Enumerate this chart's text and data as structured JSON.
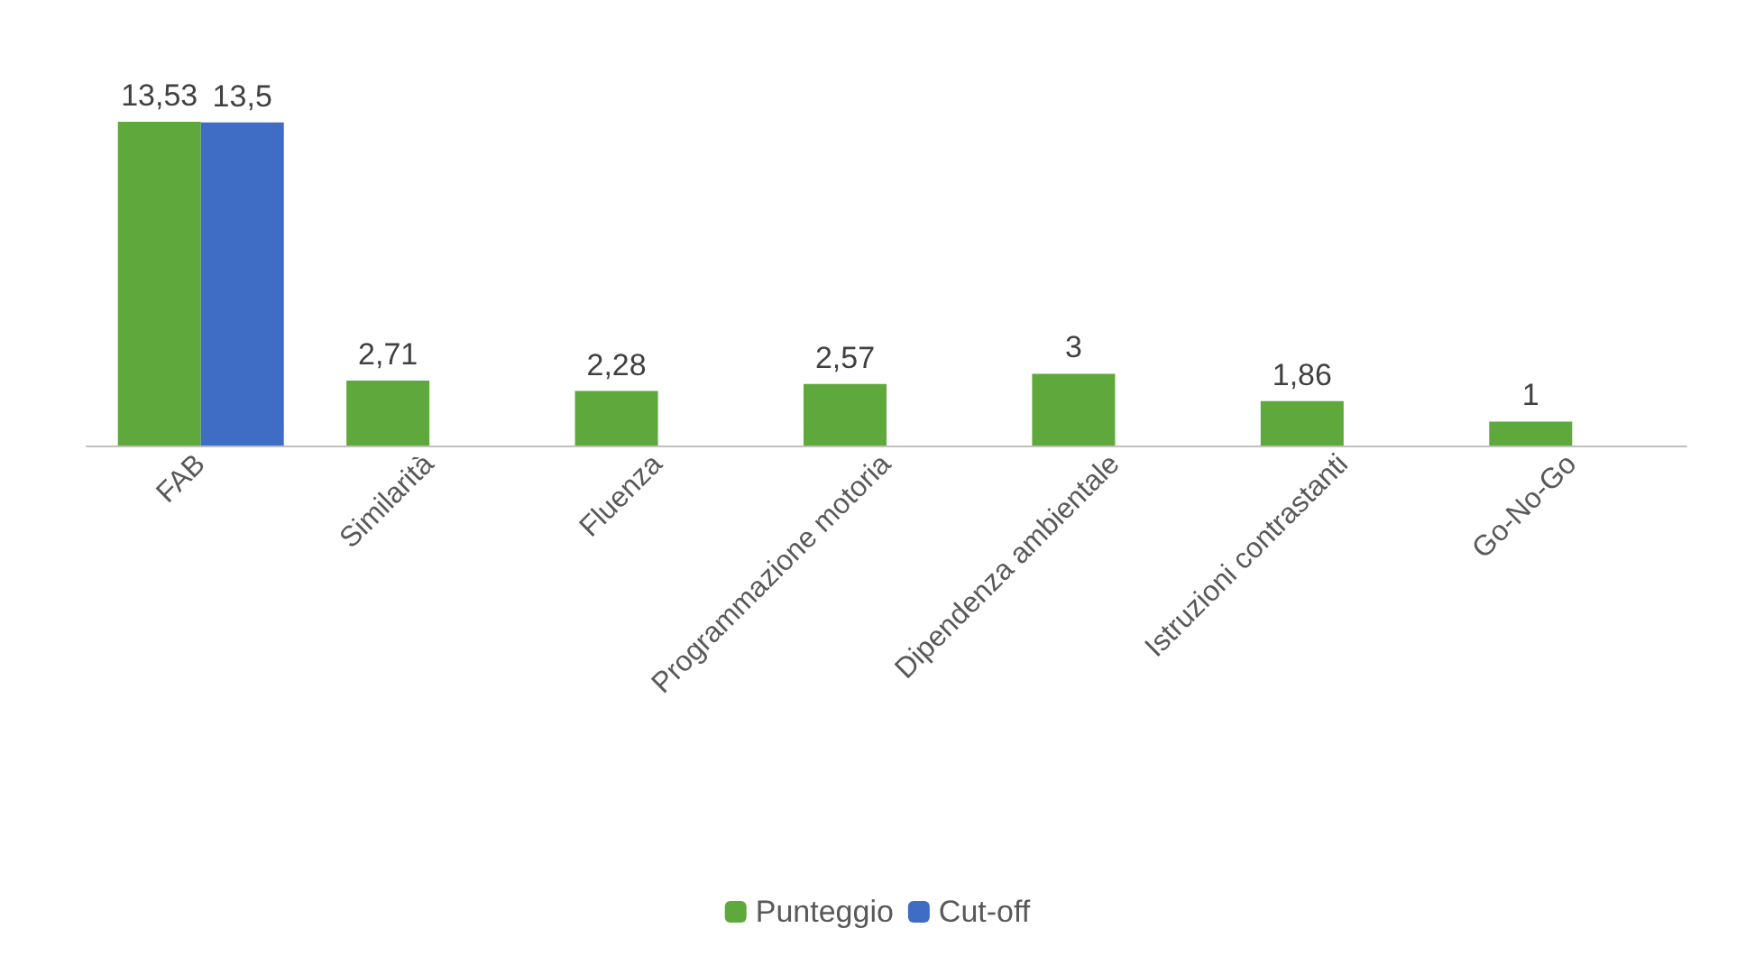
{
  "chart_data": {
    "type": "bar",
    "categories": [
      "FAB",
      "Similarità",
      "Fluenza",
      "Programmazione motoria",
      "Dipendenza ambientale",
      "Istruzioni contrastanti",
      "Go-No-Go"
    ],
    "series": [
      {
        "name": "Punteggio",
        "color": "#5ea83c",
        "values": [
          13.53,
          2.71,
          2.28,
          2.57,
          3,
          1.86,
          1
        ],
        "value_labels": [
          "13,53",
          "2,71",
          "2,28",
          "2,57",
          "3",
          "1,86",
          "1"
        ]
      },
      {
        "name": "Cut-off",
        "color": "#3f6cc4",
        "values": [
          13.5,
          null,
          null,
          null,
          null,
          null,
          null
        ],
        "value_labels": [
          "13,5",
          null,
          null,
          null,
          null,
          null,
          null
        ]
      }
    ],
    "legend": "bottom",
    "tick_labels": "x"
  }
}
